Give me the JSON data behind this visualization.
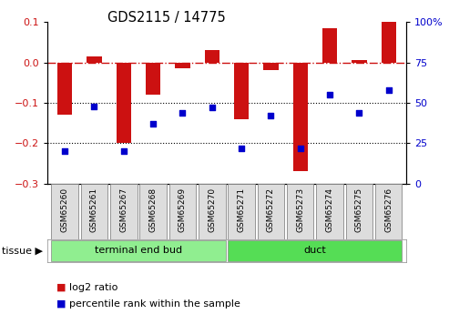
{
  "title": "GDS2115 / 14775",
  "samples": [
    "GSM65260",
    "GSM65261",
    "GSM65267",
    "GSM65268",
    "GSM65269",
    "GSM65270",
    "GSM65271",
    "GSM65272",
    "GSM65273",
    "GSM65274",
    "GSM65275",
    "GSM65276"
  ],
  "log2_ratio": [
    -0.13,
    0.015,
    -0.2,
    -0.08,
    -0.015,
    0.03,
    -0.14,
    -0.02,
    -0.27,
    0.085,
    0.005,
    0.1
  ],
  "percentile": [
    20,
    48,
    20,
    37,
    44,
    47,
    22,
    42,
    22,
    55,
    44,
    58
  ],
  "tissue_groups": [
    {
      "label": "terminal end bud",
      "start": 0,
      "end": 6,
      "color": "#90EE90"
    },
    {
      "label": "duct",
      "start": 6,
      "end": 12,
      "color": "#55DD55"
    }
  ],
  "bar_color": "#CC1111",
  "dot_color": "#0000CC",
  "ylim_left": [
    -0.3,
    0.1
  ],
  "ylim_right": [
    0,
    100
  ],
  "yticks_left": [
    -0.3,
    -0.2,
    -0.1,
    0.0,
    0.1
  ],
  "yticks_right": [
    0,
    25,
    50,
    75,
    100
  ],
  "dotted_lines": [
    -0.1,
    -0.2
  ],
  "plot_bg": "#ffffff",
  "legend_log2_label": "log2 ratio",
  "legend_pct_label": "percentile rank within the sample",
  "bar_width": 0.5
}
